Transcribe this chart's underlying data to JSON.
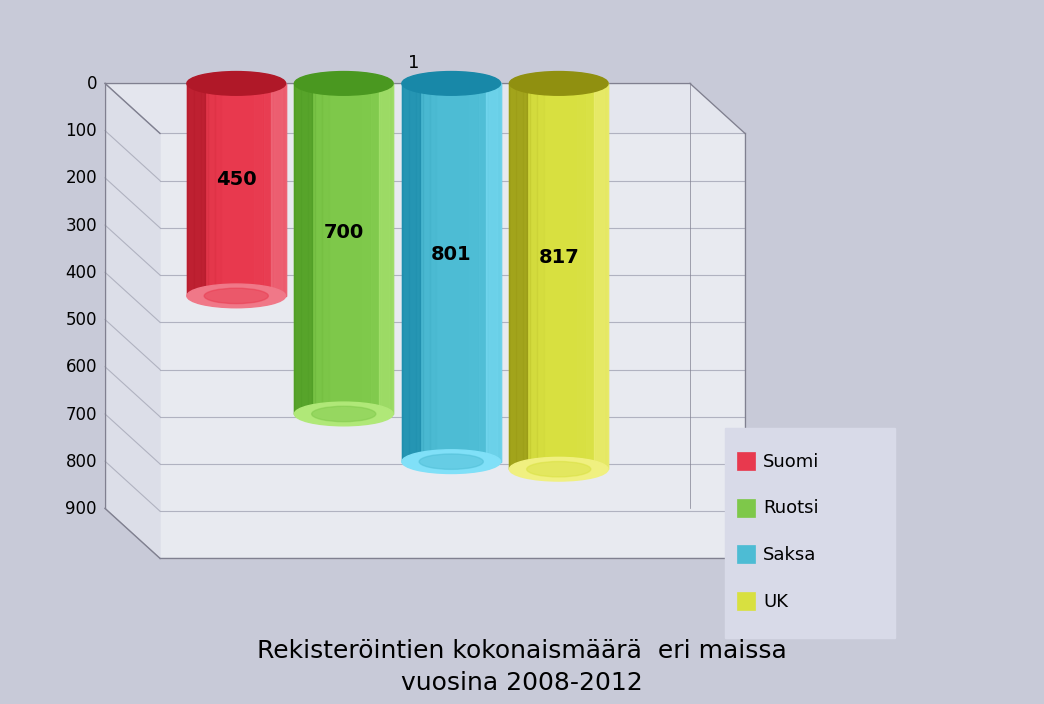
{
  "title": "Rekisteröintien kokonaismäärä  eri maissa\nvuosina 2008-2012",
  "categories": [
    "Suomi",
    "Ruotsi",
    "Saksa",
    "UK"
  ],
  "values": [
    450,
    700,
    801,
    817
  ],
  "colors_main": [
    "#e8394e",
    "#7ec84a",
    "#4dbcd4",
    "#d8e040"
  ],
  "colors_dark": [
    "#b01828",
    "#4a9820",
    "#1888a8",
    "#909010"
  ],
  "colors_light": [
    "#f07888",
    "#b0e878",
    "#80e0f8",
    "#f0f080"
  ],
  "xlabel": "1",
  "ylim": [
    0,
    900
  ],
  "yticks": [
    0,
    100,
    200,
    300,
    400,
    500,
    600,
    700,
    800,
    900
  ],
  "background_color": "#c8cad8",
  "legend_labels": [
    "Suomi",
    "Ruotsi",
    "Saksa",
    "UK"
  ],
  "legend_colors": [
    "#e8394e",
    "#7ec84a",
    "#4dbcd4",
    "#d8e040"
  ],
  "title_fontsize": 18,
  "value_label_fontsize": 14
}
